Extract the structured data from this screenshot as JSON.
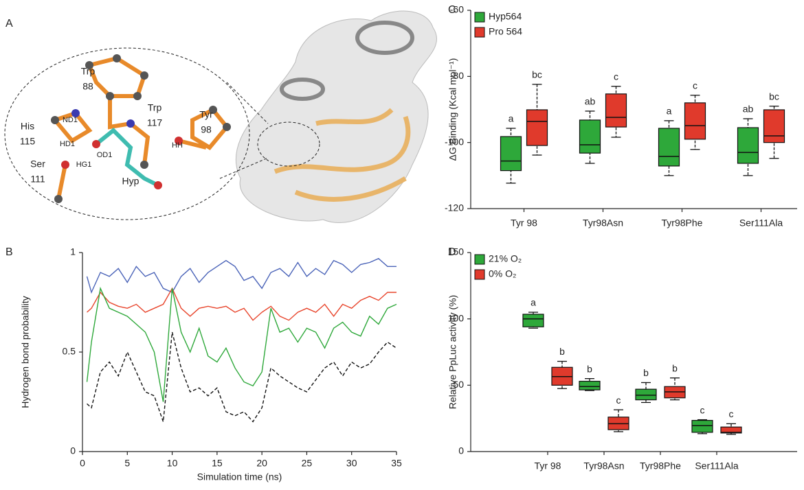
{
  "panel_a": {
    "label": "A",
    "residues": [
      {
        "name": "Trp",
        "number": "88"
      },
      {
        "name": "Trp",
        "number": "117"
      },
      {
        "name": "Tyr",
        "number": "98"
      },
      {
        "name": "His",
        "number": "115"
      },
      {
        "name": "Ser",
        "number": "111"
      },
      {
        "name": "Hyp"
      }
    ],
    "atoms": [
      "ND1",
      "HD1",
      "OD1",
      "HG1",
      "HH"
    ]
  },
  "chart_data": [
    {
      "type": "line",
      "panel_label": "B",
      "xlabel": "Simulation time (ns)",
      "ylabel": "Hydrogen bond probability",
      "x": [
        0.5,
        1,
        2,
        3,
        4,
        5,
        6,
        7,
        8,
        9,
        10,
        11,
        12,
        13,
        14,
        15,
        16,
        17,
        18,
        19,
        20,
        21,
        22,
        23,
        24,
        25,
        26,
        27,
        28,
        29,
        30,
        31,
        32,
        33,
        34,
        35
      ],
      "xlim": [
        0,
        35
      ],
      "xticks": [
        0,
        5,
        10,
        15,
        20,
        25,
        30,
        35
      ],
      "ylim": [
        0,
        1
      ],
      "yticks": [
        0,
        0.5,
        1
      ],
      "series": [
        {
          "color": "#4a63b8",
          "style": "solid",
          "values": [
            0.88,
            0.8,
            0.9,
            0.88,
            0.92,
            0.85,
            0.93,
            0.88,
            0.9,
            0.82,
            0.8,
            0.88,
            0.92,
            0.85,
            0.9,
            0.93,
            0.96,
            0.93,
            0.86,
            0.88,
            0.82,
            0.9,
            0.92,
            0.88,
            0.95,
            0.88,
            0.92,
            0.89,
            0.96,
            0.94,
            0.9,
            0.94,
            0.95,
            0.97,
            0.93,
            0.93
          ]
        },
        {
          "color": "#e8452c",
          "style": "solid",
          "values": [
            0.7,
            0.72,
            0.8,
            0.75,
            0.73,
            0.72,
            0.74,
            0.7,
            0.72,
            0.74,
            0.82,
            0.72,
            0.68,
            0.72,
            0.73,
            0.72,
            0.73,
            0.7,
            0.72,
            0.66,
            0.7,
            0.73,
            0.68,
            0.66,
            0.7,
            0.72,
            0.7,
            0.74,
            0.68,
            0.74,
            0.72,
            0.76,
            0.78,
            0.76,
            0.8,
            0.8
          ]
        },
        {
          "color": "#2ea83a",
          "style": "solid",
          "values": [
            0.35,
            0.55,
            0.82,
            0.72,
            0.7,
            0.68,
            0.64,
            0.6,
            0.5,
            0.25,
            0.82,
            0.6,
            0.5,
            0.62,
            0.48,
            0.45,
            0.52,
            0.42,
            0.35,
            0.33,
            0.4,
            0.72,
            0.6,
            0.62,
            0.55,
            0.62,
            0.6,
            0.52,
            0.62,
            0.65,
            0.6,
            0.58,
            0.68,
            0.64,
            0.72,
            0.74
          ]
        },
        {
          "color": "#111111",
          "style": "dashed",
          "values": [
            0.24,
            0.22,
            0.4,
            0.45,
            0.38,
            0.5,
            0.4,
            0.3,
            0.28,
            0.15,
            0.6,
            0.42,
            0.3,
            0.32,
            0.28,
            0.32,
            0.2,
            0.18,
            0.2,
            0.15,
            0.22,
            0.42,
            0.38,
            0.35,
            0.32,
            0.3,
            0.36,
            0.42,
            0.45,
            0.38,
            0.45,
            0.42,
            0.44,
            0.5,
            0.55,
            0.52
          ]
        }
      ]
    },
    {
      "type": "box",
      "panel_label": "C",
      "ylabel": "ΔG Binding (Kcal mol⁻¹)",
      "legend": "upper left",
      "categories": [
        "Tyr 98",
        "Tyr98Asn",
        "Tyr98Phe",
        "Ser111Ala"
      ],
      "ylim": [
        -120,
        -60
      ],
      "yticks": [
        -120,
        -100,
        -80,
        -60
      ],
      "series": [
        {
          "name": "Hyp564",
          "color": "#2ea83a",
          "letters": [
            "a",
            "ab",
            "a",
            "ab"
          ],
          "values": [
            {
              "min": -112.3,
              "q1": -108.5,
              "median": -105.6,
              "q3": -98.2,
              "max": -95.7
            },
            {
              "min": -106.3,
              "q1": -103.2,
              "median": -100.7,
              "q3": -93.2,
              "max": -90.5
            },
            {
              "min": -110,
              "q1": -107.1,
              "median": -104.2,
              "q3": -95.7,
              "max": -93.4
            },
            {
              "min": -110,
              "q1": -106.3,
              "median": -103,
              "q3": -95.5,
              "max": -92.8
            }
          ]
        },
        {
          "name": "Pro 564",
          "color": "#e03a2c",
          "letters": [
            "bc",
            "c",
            "c",
            "bc"
          ],
          "values": [
            {
              "min": -103.8,
              "q1": -100.9,
              "median": -93.6,
              "q3": -90.1,
              "max": -82.4
            },
            {
              "min": -98.4,
              "q1": -95.3,
              "median": -92.4,
              "q3": -85.3,
              "max": -83
            },
            {
              "min": -102.1,
              "q1": -99,
              "median": -94.9,
              "q3": -88,
              "max": -85.7
            },
            {
              "min": -104.8,
              "q1": -100,
              "median": -98,
              "q3": -90.1,
              "max": -89
            }
          ]
        }
      ]
    },
    {
      "type": "box",
      "panel_label": "D",
      "ylabel": "Relative PpLuc activity (%)",
      "legend": "upper left",
      "categories": [
        "Tyr 98",
        "Tyr98Asn",
        "Tyr98Phe",
        "Ser111Ala"
      ],
      "ylim": [
        0,
        150
      ],
      "yticks": [
        0,
        50,
        100,
        150
      ],
      "series": [
        {
          "name": "21% O₂",
          "color": "#2ea83a",
          "letters": [
            "a",
            "b",
            "b",
            "c"
          ],
          "values": [
            {
              "min": 93,
              "q1": 94,
              "median": 100,
              "q3": 103.5,
              "max": 105
            },
            {
              "min": 46,
              "q1": 46.5,
              "median": 49,
              "q3": 53,
              "max": 55
            },
            {
              "min": 37,
              "q1": 39,
              "median": 42.5,
              "q3": 47,
              "max": 52
            },
            {
              "min": 13.5,
              "q1": 14.5,
              "median": 19.5,
              "q3": 23.5,
              "max": 24
            }
          ]
        },
        {
          "name": "0% O₂",
          "color": "#e03a2c",
          "letters": [
            "b",
            "c",
            "b",
            "c"
          ],
          "values": [
            {
              "min": 47.5,
              "q1": 50,
              "median": 56.5,
              "q3": 63.5,
              "max": 68
            },
            {
              "min": 15,
              "q1": 16.5,
              "median": 21,
              "q3": 26,
              "max": 31.5
            },
            {
              "min": 39,
              "q1": 40.5,
              "median": 45,
              "q3": 49,
              "max": 55.5
            },
            {
              "min": 13,
              "q1": 14,
              "median": 14.5,
              "q3": 18.5,
              "max": 21
            }
          ]
        }
      ]
    }
  ]
}
